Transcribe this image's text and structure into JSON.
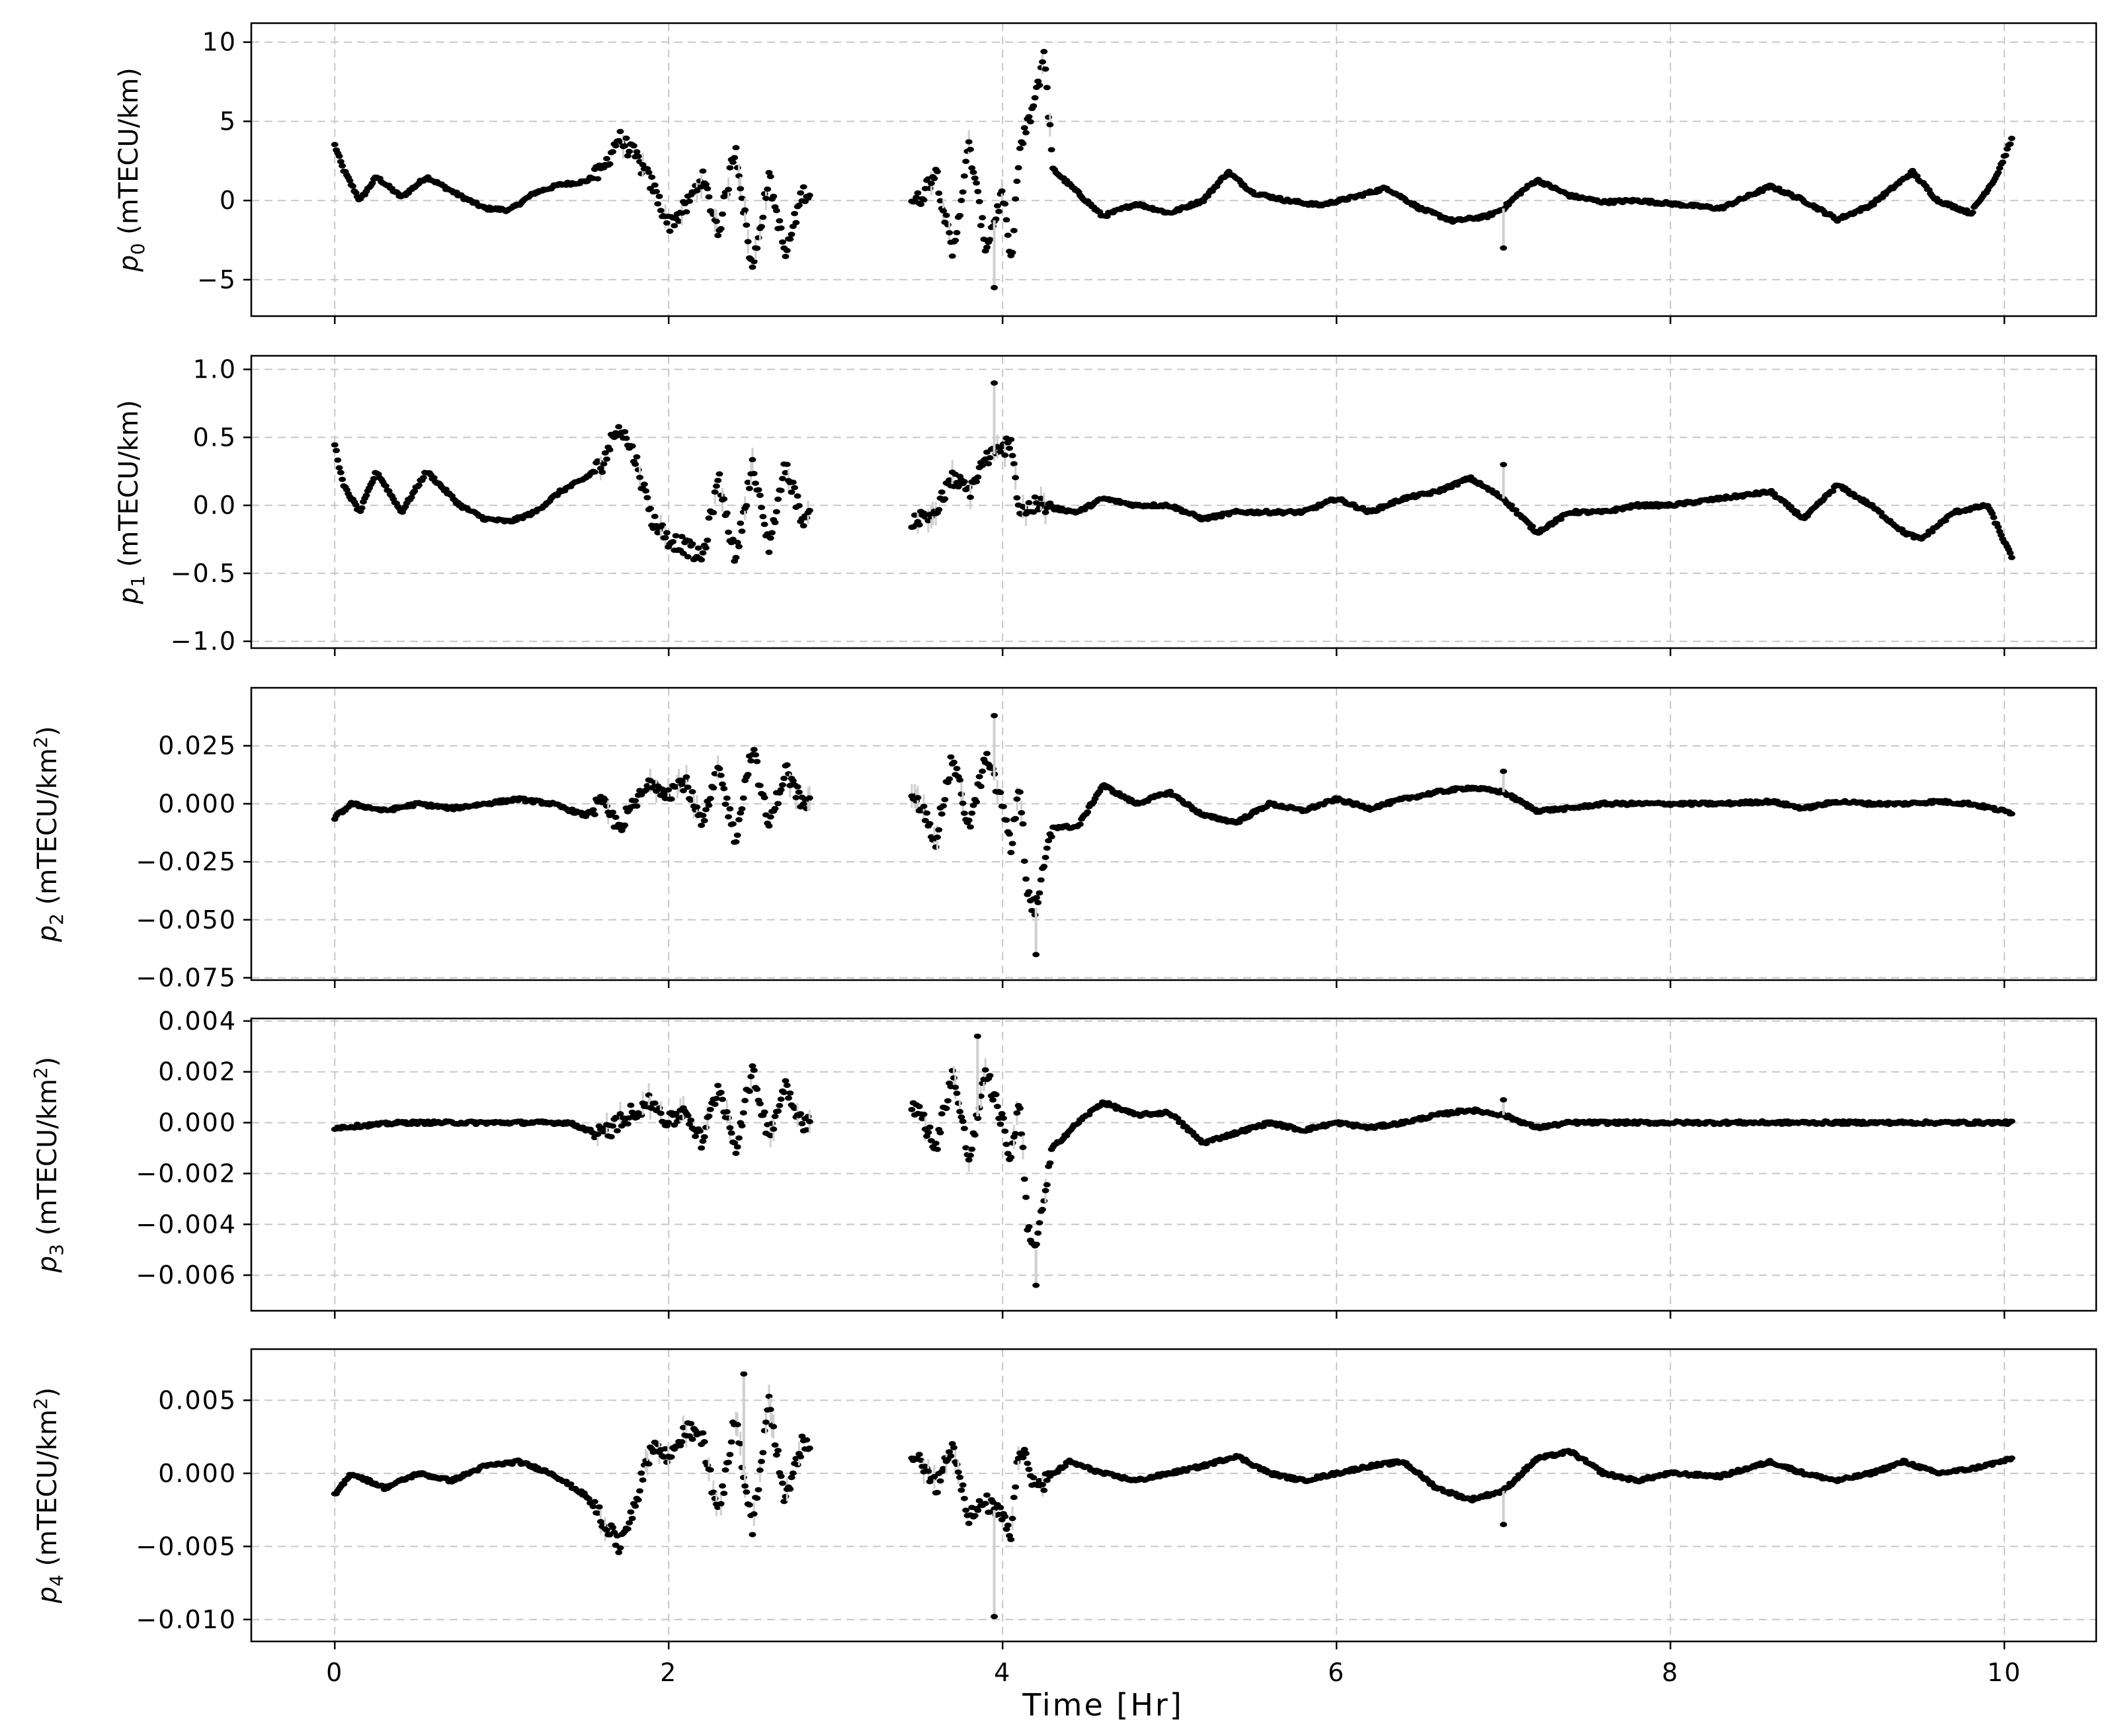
{
  "chart_data": [
    {
      "type": "scatter",
      "panel": "p0",
      "ylabel_symbol": "p",
      "ylabel_sub": "0",
      "ylabel_unit": " (mTECU/km)",
      "ylabel_sup": "",
      "ylabel_tail": "",
      "ylim": [
        -7.3,
        11.2
      ],
      "yticks": [
        10,
        5,
        0,
        -5
      ],
      "ytick_labels": [
        "10",
        "5",
        "0",
        "−5"
      ],
      "x": [
        0,
        0.05,
        0.15,
        0.25,
        0.4,
        0.55,
        0.75,
        0.9,
        1.05,
        1.2,
        1.35,
        1.5,
        1.6,
        1.7,
        1.8,
        1.9,
        2.0,
        2.1,
        2.2,
        2.3,
        2.4,
        2.5,
        2.6,
        2.7,
        2.8,
        3.5,
        3.6,
        3.7,
        3.8,
        3.9,
        4.0,
        4.05,
        4.1,
        4.2,
        4.25,
        4.3,
        4.45,
        4.6,
        4.8,
        5.0,
        5.2,
        5.35,
        5.5,
        5.7,
        5.9,
        6.1,
        6.3,
        6.5,
        6.7,
        6.9,
        7.0,
        7.1,
        7.2,
        7.4,
        7.6,
        7.8,
        8.0,
        8.3,
        8.6,
        8.8,
        9.0,
        9.2,
        9.45,
        9.6,
        9.8,
        9.95,
        10.05
      ],
      "values": [
        3.5,
        2.0,
        0.0,
        1.5,
        0.2,
        1.5,
        0.3,
        -0.5,
        -0.6,
        0.5,
        1.0,
        1.2,
        1.8,
        4.0,
        2.8,
        1.0,
        -1.5,
        -0.5,
        1.5,
        -2.0,
        3.5,
        -4.5,
        1.5,
        -3.5,
        0.5,
        0.0,
        2.0,
        -3.5,
        3.5,
        -3.0,
        0.5,
        -4.0,
        3.0,
        6.5,
        9.5,
        2.0,
        0.5,
        -1.0,
        -0.2,
        -0.8,
        0.0,
        1.8,
        0.5,
        0.0,
        -0.3,
        0.2,
        0.8,
        -0.5,
        -1.3,
        -1.0,
        -0.5,
        0.5,
        1.3,
        0.3,
        -0.1,
        0.0,
        -0.2,
        -0.5,
        0.9,
        0.0,
        -1.2,
        -0.3,
        1.8,
        0.0,
        -0.8,
        1.5,
        4.0
      ],
      "extra_points": [
        {
          "x": 7.0,
          "y": -3.0
        },
        {
          "x": 3.95,
          "y": -5.5
        }
      ]
    },
    {
      "type": "scatter",
      "panel": "p1",
      "ylabel_symbol": "p",
      "ylabel_sub": "1",
      "ylabel_unit": " (mTECU/km)",
      "ylabel_sup": "",
      "ylabel_tail": "",
      "ylim": [
        -1.05,
        1.1
      ],
      "yticks": [
        1.0,
        0.5,
        0.0,
        -0.5,
        -1.0
      ],
      "ytick_labels": [
        "1.0",
        "0.5",
        "0.0",
        "−0.5",
        "−1.0"
      ],
      "x": [
        0,
        0.05,
        0.15,
        0.25,
        0.4,
        0.55,
        0.75,
        0.9,
        1.05,
        1.2,
        1.35,
        1.5,
        1.6,
        1.7,
        1.8,
        1.9,
        2.0,
        2.1,
        2.2,
        2.3,
        2.4,
        2.5,
        2.6,
        2.7,
        2.8,
        3.5,
        3.6,
        3.7,
        3.8,
        3.9,
        4.0,
        4.05,
        4.1,
        4.2,
        4.45,
        4.6,
        4.8,
        5.0,
        5.2,
        5.4,
        5.6,
        5.8,
        6.0,
        6.2,
        6.4,
        6.6,
        6.8,
        7.0,
        7.2,
        7.4,
        7.6,
        7.8,
        8.0,
        8.3,
        8.6,
        8.8,
        9.0,
        9.2,
        9.4,
        9.5,
        9.7,
        9.9,
        10.05
      ],
      "values": [
        0.45,
        0.15,
        -0.05,
        0.25,
        -0.05,
        0.25,
        0.0,
        -0.1,
        -0.12,
        -0.05,
        0.1,
        0.2,
        0.3,
        0.6,
        0.35,
        -0.1,
        -0.25,
        -0.3,
        -0.4,
        0.2,
        -0.4,
        0.3,
        -0.3,
        0.3,
        -0.1,
        -0.1,
        -0.05,
        0.2,
        0.1,
        0.35,
        0.4,
        0.5,
        -0.05,
        0.0,
        -0.05,
        0.05,
        0.0,
        0.0,
        -0.1,
        -0.05,
        -0.05,
        -0.05,
        0.05,
        -0.05,
        0.05,
        0.1,
        0.2,
        0.05,
        -0.2,
        -0.05,
        -0.05,
        0.0,
        0.0,
        0.05,
        0.1,
        -0.1,
        0.15,
        0.0,
        -0.2,
        -0.25,
        -0.05,
        0.0,
        -0.4
      ],
      "extra_points": [
        {
          "x": 3.95,
          "y": 0.9
        },
        {
          "x": 7.0,
          "y": 0.3
        }
      ]
    },
    {
      "type": "scatter",
      "panel": "p2",
      "ylabel_symbol": "p",
      "ylabel_sub": "2",
      "ylabel_unit": " (mTECU/km",
      "ylabel_sup": "2",
      "ylabel_tail": ")",
      "ylim": [
        -0.076,
        0.05
      ],
      "yticks": [
        0.025,
        0.0,
        -0.025,
        -0.05,
        -0.075
      ],
      "ytick_labels": [
        "0.025",
        "0.000",
        "−0.025",
        "−0.050",
        "−0.075"
      ],
      "x": [
        0,
        0.1,
        0.3,
        0.5,
        0.7,
        0.9,
        1.1,
        1.3,
        1.5,
        1.6,
        1.7,
        1.8,
        1.9,
        2.0,
        2.1,
        2.2,
        2.3,
        2.4,
        2.5,
        2.6,
        2.7,
        2.8,
        3.5,
        3.6,
        3.7,
        3.8,
        3.9,
        4.0,
        4.05,
        4.1,
        4.15,
        4.2,
        4.3,
        4.45,
        4.6,
        4.8,
        5.0,
        5.2,
        5.4,
        5.6,
        5.8,
        6.0,
        6.2,
        6.4,
        6.6,
        6.8,
        7.0,
        7.2,
        7.4,
        7.6,
        7.8,
        8.0,
        8.3,
        8.6,
        8.8,
        9.0,
        9.2,
        9.4,
        9.6,
        9.8,
        10.05
      ],
      "values": [
        -0.006,
        0.0,
        -0.003,
        0.0,
        -0.002,
        0.0,
        0.002,
        0.0,
        -0.005,
        0.0,
        -0.01,
        0.0,
        0.01,
        0.005,
        0.01,
        -0.01,
        0.015,
        -0.015,
        0.025,
        -0.01,
        0.015,
        0.0,
        0.0,
        -0.015,
        0.02,
        -0.01,
        0.02,
        0.0,
        -0.02,
        0.01,
        -0.04,
        -0.045,
        -0.01,
        -0.01,
        0.008,
        0.0,
        0.005,
        -0.005,
        -0.008,
        0.0,
        -0.003,
        0.002,
        -0.002,
        0.002,
        0.005,
        0.007,
        0.005,
        -0.003,
        -0.002,
        0.0,
        0.0,
        0.0,
        0.0,
        0.001,
        -0.002,
        0.001,
        0.0,
        0.0,
        0.001,
        0.0,
        -0.004
      ],
      "extra_points": [
        {
          "x": 3.95,
          "y": 0.038
        },
        {
          "x": 7.0,
          "y": 0.014
        },
        {
          "x": 4.2,
          "y": -0.065
        }
      ]
    },
    {
      "type": "scatter",
      "panel": "p3",
      "ylabel_symbol": "p",
      "ylabel_sub": "3",
      "ylabel_unit": " (mTECU/km",
      "ylabel_sup": "2",
      "ylabel_tail": ")",
      "ylim": [
        -0.0074,
        0.0041
      ],
      "yticks": [
        0.004,
        0.002,
        0.0,
        -0.002,
        -0.004,
        -0.006
      ],
      "ytick_labels": [
        "0.004",
        "0.002",
        "0.000",
        "−0.002",
        "−0.004",
        "−0.006"
      ],
      "x": [
        0,
        0.2,
        0.4,
        0.6,
        0.8,
        1.0,
        1.2,
        1.4,
        1.6,
        1.7,
        1.8,
        1.9,
        2.0,
        2.1,
        2.2,
        2.3,
        2.4,
        2.5,
        2.6,
        2.7,
        2.8,
        3.5,
        3.6,
        3.7,
        3.8,
        3.9,
        4.0,
        4.05,
        4.1,
        4.15,
        4.2,
        4.3,
        4.45,
        4.6,
        4.8,
        5.0,
        5.2,
        5.4,
        5.6,
        5.8,
        6.0,
        6.2,
        6.4,
        6.6,
        6.8,
        7.0,
        7.2,
        7.4,
        7.6,
        8.0,
        8.5,
        9.0,
        9.5,
        10.05
      ],
      "values": [
        -0.0002,
        -0.0001,
        0.0,
        0.0,
        0.0,
        0.0,
        0.0,
        0.0,
        -0.0005,
        0.0,
        0.0005,
        0.0008,
        0.0,
        0.0005,
        -0.0008,
        0.0015,
        -0.001,
        0.002,
        -0.0005,
        0.0015,
        0.0,
        0.0005,
        -0.001,
        0.002,
        -0.0015,
        0.002,
        0.0,
        -0.0015,
        0.001,
        -0.004,
        -0.005,
        -0.001,
        0.0,
        0.0008,
        0.0003,
        0.0004,
        -0.0008,
        -0.0004,
        0.0,
        -0.0003,
        0.0,
        -0.0002,
        0.0,
        0.0003,
        0.0005,
        0.0003,
        -0.0002,
        0.0,
        0.0,
        0.0,
        0.0,
        0.0,
        0.0,
        0.0
      ],
      "extra_points": [
        {
          "x": 4.2,
          "y": -0.0064
        },
        {
          "x": 7.0,
          "y": 0.0009
        },
        {
          "x": 3.85,
          "y": 0.0034
        }
      ]
    },
    {
      "type": "scatter",
      "panel": "p4",
      "ylabel_symbol": "p",
      "ylabel_sub": "4",
      "ylabel_unit": " (mTECU/km",
      "ylabel_sup": "2",
      "ylabel_tail": ")",
      "ylim": [
        -0.0115,
        0.0085
      ],
      "yticks": [
        0.005,
        0.0,
        -0.005,
        -0.01
      ],
      "ytick_labels": [
        "0.005",
        "0.000",
        "−0.005",
        "−0.010"
      ],
      "x": [
        0,
        0.1,
        0.3,
        0.5,
        0.7,
        0.9,
        1.1,
        1.3,
        1.5,
        1.6,
        1.7,
        1.8,
        1.9,
        2.0,
        2.1,
        2.2,
        2.3,
        2.4,
        2.5,
        2.6,
        2.7,
        2.8,
        3.5,
        3.6,
        3.7,
        3.8,
        3.9,
        4.0,
        4.05,
        4.1,
        4.2,
        4.4,
        4.6,
        4.8,
        5.0,
        5.2,
        5.4,
        5.6,
        5.8,
        6.0,
        6.2,
        6.4,
        6.6,
        6.8,
        7.0,
        7.2,
        7.4,
        7.6,
        7.8,
        8.0,
        8.3,
        8.6,
        8.8,
        9.0,
        9.2,
        9.4,
        9.6,
        9.8,
        10.05
      ],
      "values": [
        -0.0015,
        0.0,
        -0.001,
        0.0,
        -0.0005,
        0.0005,
        0.0008,
        0.0,
        -0.0015,
        -0.003,
        -0.005,
        -0.002,
        0.002,
        0.001,
        0.003,
        0.0025,
        -0.003,
        0.004,
        -0.004,
        0.005,
        -0.002,
        0.002,
        0.001,
        -0.001,
        0.002,
        -0.003,
        -0.002,
        -0.003,
        -0.0045,
        0.002,
        -0.001,
        0.0008,
        0.0,
        -0.0005,
        0.0,
        0.0005,
        0.0012,
        0.0,
        -0.0005,
        0.0,
        0.0005,
        0.0008,
        -0.001,
        -0.0018,
        -0.0012,
        0.001,
        0.0015,
        0.0,
        -0.0005,
        0.0,
        -0.0002,
        0.0008,
        0.0,
        -0.0005,
        0.0,
        0.0008,
        0.0,
        0.0003,
        0.001
      ],
      "extra_points": [
        {
          "x": 3.95,
          "y": -0.0098
        },
        {
          "x": 7.0,
          "y": -0.0035
        },
        {
          "x": 2.45,
          "y": 0.0068
        }
      ]
    }
  ],
  "x_axis": {
    "label": "Time [Hr]",
    "xlim": [
      -0.5,
      10.55
    ],
    "ticks": [
      0,
      2,
      4,
      6,
      8,
      10
    ],
    "tick_labels": [
      "0",
      "2",
      "4",
      "6",
      "8",
      "10"
    ],
    "gap": [
      2.85,
      3.45
    ]
  },
  "grid": true
}
